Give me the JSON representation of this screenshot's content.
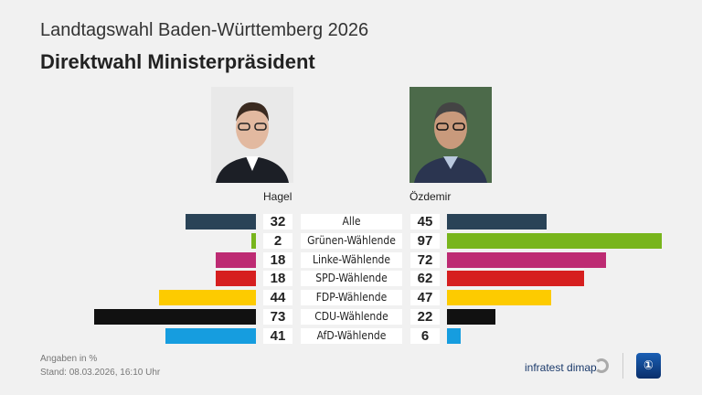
{
  "header": {
    "supertitle": "Landtagswahl Baden-Württemberg 2026",
    "title": "Direktwahl Ministerpräsident"
  },
  "chart_data": {
    "type": "bar",
    "orientation": "horizontal-butterfly",
    "categories": [
      "Alle",
      "Grünen-Wählende",
      "Linke-Wählende",
      "SPD-Wählende",
      "FDP-Wählende",
      "CDU-Wählende",
      "AfD-Wählende"
    ],
    "series": [
      {
        "name": "Hagel",
        "values": [
          32,
          2,
          18,
          18,
          44,
          73,
          41
        ]
      },
      {
        "name": "Özdemir",
        "values": [
          45,
          97,
          72,
          62,
          47,
          22,
          6
        ]
      }
    ],
    "colors": [
      "#2a4357",
      "#78b51c",
      "#bd2b73",
      "#d61f1f",
      "#fdcb00",
      "#111111",
      "#169ddf"
    ],
    "unit": "%"
  },
  "footer": {
    "note": "Angaben in %",
    "stand": "Stand:  08.03.2026, 16:10 Uhr",
    "brand": "infratest dimap"
  }
}
